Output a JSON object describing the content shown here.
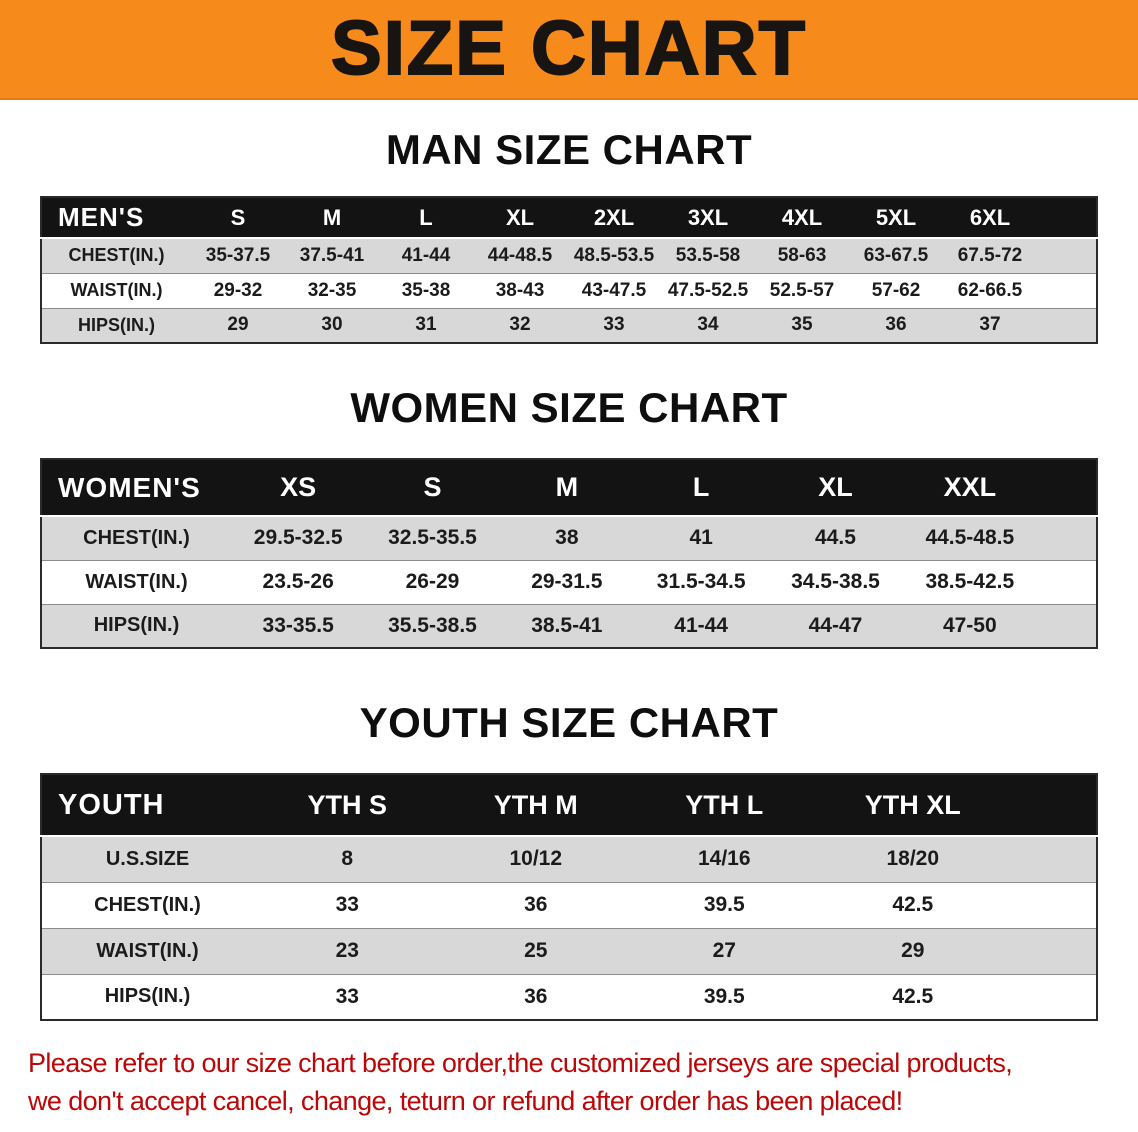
{
  "banner": {
    "title": "SIZE CHART"
  },
  "colors": {
    "banner_bg": "#f68a1b",
    "table_header_bg": "#131313",
    "row_alt_bg": "#d8d8d8",
    "footer_text": "#bb0707"
  },
  "sections": [
    {
      "id": "men",
      "heading": "MAN SIZE CHART",
      "corner_label": "MEN'S",
      "columns": [
        "S",
        "M",
        "L",
        "XL",
        "2XL",
        "3XL",
        "4XL",
        "5XL",
        "6XL"
      ],
      "rows": [
        {
          "label": "CHEST(IN.)",
          "values": [
            "35-37.5",
            "37.5-41",
            "41-44",
            "44-48.5",
            "48.5-53.5",
            "53.5-58",
            "58-63",
            "63-67.5",
            "67.5-72"
          ]
        },
        {
          "label": "WAIST(IN.)",
          "values": [
            "29-32",
            "32-35",
            "35-38",
            "38-43",
            "43-47.5",
            "47.5-52.5",
            "52.5-57",
            "57-62",
            "62-66.5"
          ]
        },
        {
          "label": "HIPS(IN.)",
          "values": [
            "29",
            "30",
            "31",
            "32",
            "33",
            "34",
            "35",
            "36",
            "37"
          ]
        }
      ]
    },
    {
      "id": "women",
      "heading": "WOMEN SIZE CHART",
      "corner_label": "WOMEN'S",
      "columns": [
        "XS",
        "S",
        "M",
        "L",
        "XL",
        "XXL"
      ],
      "rows": [
        {
          "label": "CHEST(IN.)",
          "values": [
            "29.5-32.5",
            "32.5-35.5",
            "38",
            "41",
            "44.5",
            "44.5-48.5"
          ]
        },
        {
          "label": "WAIST(IN.)",
          "values": [
            "23.5-26",
            "26-29",
            "29-31.5",
            "31.5-34.5",
            "34.5-38.5",
            "38.5-42.5"
          ]
        },
        {
          "label": "HIPS(IN.)",
          "values": [
            "33-35.5",
            "35.5-38.5",
            "38.5-41",
            "41-44",
            "44-47",
            "47-50"
          ]
        }
      ]
    },
    {
      "id": "youth",
      "heading": "YOUTH SIZE CHART",
      "corner_label": "YOUTH",
      "columns": [
        "YTH S",
        "YTH M",
        "YTH L",
        "YTH XL"
      ],
      "rows": [
        {
          "label": "U.S.SIZE",
          "values": [
            "8",
            "10/12",
            "14/16",
            "18/20"
          ]
        },
        {
          "label": "CHEST(IN.)",
          "values": [
            "33",
            "36",
            "39.5",
            "42.5"
          ]
        },
        {
          "label": "WAIST(IN.)",
          "values": [
            "23",
            "25",
            "27",
            "29"
          ]
        },
        {
          "label": "HIPS(IN.)",
          "values": [
            "33",
            "36",
            "39.5",
            "42.5"
          ]
        }
      ]
    }
  ],
  "footer": {
    "line1": "Please refer to our size chart before order,the customized jerseys are special products,",
    "line2": "we don't accept cancel, change, teturn or refund after order has been placed!"
  }
}
